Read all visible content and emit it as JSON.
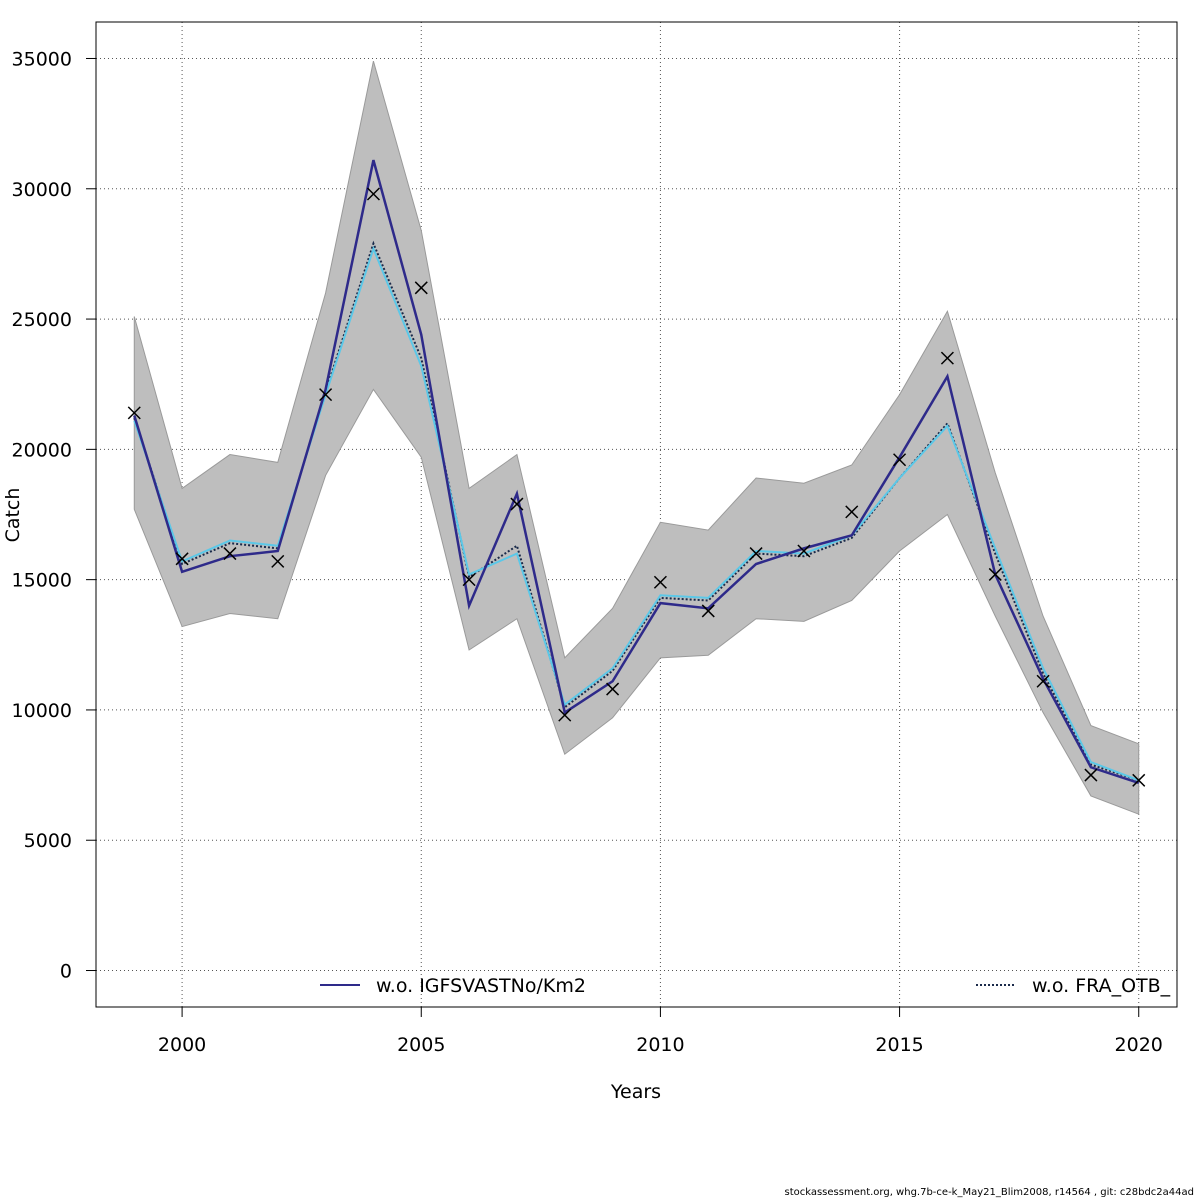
{
  "chart_data": {
    "type": "line",
    "title": "",
    "xlabel": "Years",
    "ylabel": "Catch",
    "xlim": [
      1998.2,
      2020.8
    ],
    "ylim": [
      -1400,
      36400
    ],
    "x_ticks": [
      2000,
      2005,
      2010,
      2015,
      2020
    ],
    "y_ticks": [
      0,
      5000,
      10000,
      15000,
      20000,
      25000,
      30000,
      35000
    ],
    "grid": true,
    "years": [
      1999,
      2000,
      2001,
      2002,
      2003,
      2004,
      2005,
      2006,
      2007,
      2008,
      2009,
      2010,
      2011,
      2012,
      2013,
      2014,
      2015,
      2016,
      2017,
      2018,
      2019,
      2020
    ],
    "band": {
      "color": "#bebebe",
      "upper": [
        25100,
        18500,
        19800,
        19500,
        26000,
        34900,
        28400,
        18500,
        19800,
        12000,
        13900,
        17200,
        16900,
        18900,
        18700,
        19400,
        22100,
        25300,
        19100,
        13600,
        9400,
        8700
      ],
      "lower": [
        17700,
        13200,
        13700,
        13500,
        19000,
        22300,
        19700,
        12300,
        13500,
        8300,
        9700,
        12000,
        12100,
        13500,
        13400,
        14200,
        16100,
        17500,
        13600,
        9900,
        6700,
        6000
      ]
    },
    "series": [
      {
        "name": "w.o. IGFSVASTNo/Km2",
        "color": "#2e2a8a",
        "style": "solid",
        "values": [
          21300,
          15300,
          15900,
          16100,
          22300,
          31100,
          24400,
          14000,
          18300,
          9900,
          11100,
          14100,
          13900,
          15600,
          16200,
          16700,
          19700,
          22800,
          15200,
          11200,
          7800,
          7200
        ]
      },
      {
        "name": "w.o. FRA_OTB_",
        "color": "#1a2a4a",
        "style": "dotted",
        "values": [
          21200,
          15600,
          16400,
          16200,
          22200,
          27900,
          23500,
          15100,
          16300,
          10100,
          11500,
          14300,
          14200,
          16000,
          15900,
          16600,
          18900,
          21000,
          16000,
          11400,
          7900,
          7300
        ]
      },
      {
        "name": "",
        "color": "#5bc8e8",
        "style": "solid",
        "values": [
          21100,
          15700,
          16500,
          16300,
          22100,
          27700,
          23200,
          15200,
          16000,
          10200,
          11600,
          14400,
          14300,
          16100,
          16000,
          16700,
          18900,
          20900,
          16200,
          11600,
          8000,
          7300
        ]
      }
    ],
    "observed": {
      "marker": "cross",
      "color": "#000000",
      "values": [
        21400,
        15800,
        16000,
        15700,
        22100,
        29800,
        26200,
        15000,
        17900,
        9800,
        10800,
        14900,
        13800,
        16000,
        16100,
        17600,
        19600,
        23500,
        15200,
        11100,
        7500,
        7300
      ]
    },
    "legend": {
      "placement": "bottom",
      "entries": [
        {
          "label": "w.o. IGFSVASTNo/Km2",
          "color": "#2e2a8a",
          "style": "solid"
        },
        {
          "label": "w.o. FRA_OTB_",
          "color": "#1a2a4a",
          "style": "dotted"
        }
      ]
    }
  },
  "footer": "stockassessment.org, whg.7b-ce-k_May21_Blim2008, r14564 , git: c28bdc2a44ad"
}
